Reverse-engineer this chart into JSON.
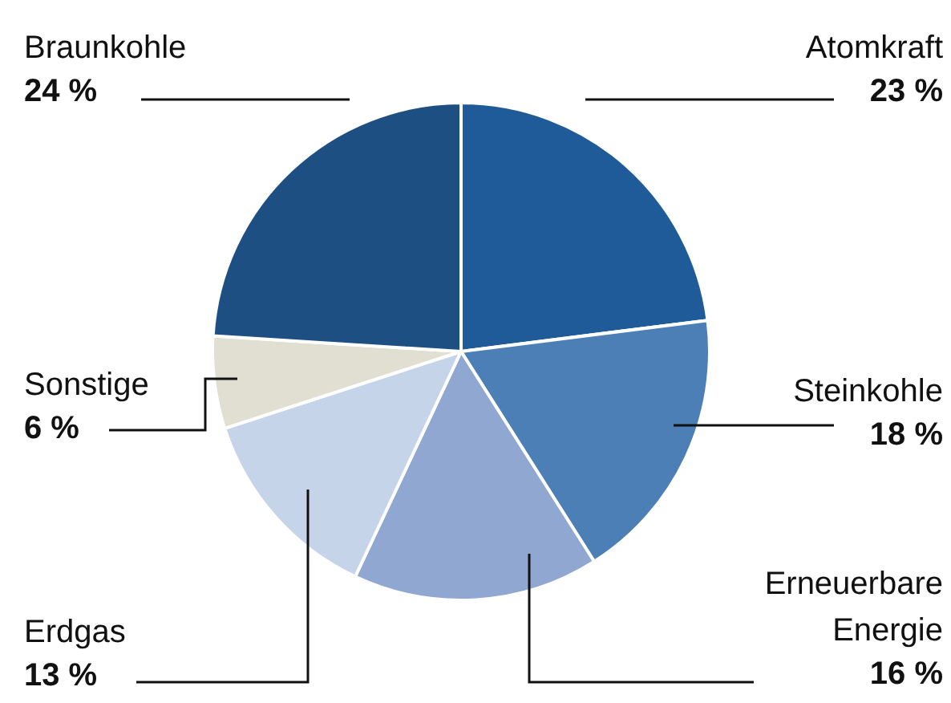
{
  "chart_data": {
    "type": "pie",
    "categories": [
      "Atomkraft",
      "Steinkohle",
      "Erneuerbare Energie",
      "Erdgas",
      "Sonstige",
      "Braunkohle"
    ],
    "values": [
      23,
      18,
      16,
      13,
      6,
      24
    ],
    "value_labels": [
      "23 %",
      "18 %",
      "16 %",
      "13 %",
      "6 %",
      "24 %"
    ],
    "colors": [
      "#1f5b98",
      "#4b7fb6",
      "#8fa7d1",
      "#c6d4ea",
      "#e1ded2",
      "#1e4f82"
    ],
    "legend": false
  }
}
